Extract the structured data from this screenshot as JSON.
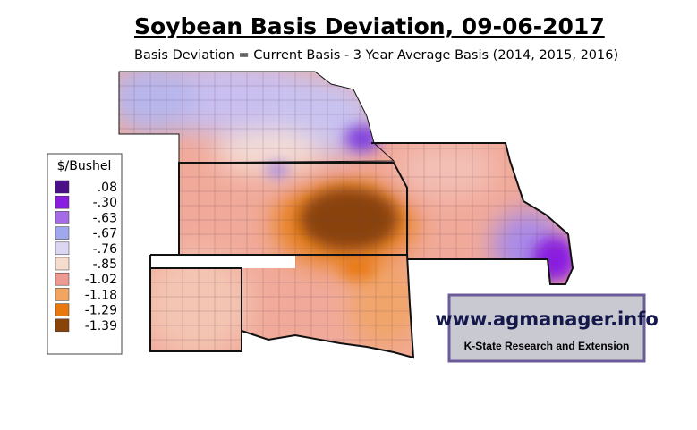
{
  "header": {
    "title": "Soybean Basis Deviation, 09-06-2017",
    "subtitle": "Basis Deviation = Current Basis - 3 Year Average Basis (2014, 2015, 2016)"
  },
  "legend": {
    "title": "$/Bushel",
    "items": [
      {
        "label": ".08",
        "color": "#4b0f8a"
      },
      {
        "label": "-.30",
        "color": "#8a1de0"
      },
      {
        "label": "-.63",
        "color": "#a46ae8"
      },
      {
        "label": "-.67",
        "color": "#9fa8ec"
      },
      {
        "label": "-.76",
        "color": "#ddd6f3"
      },
      {
        "label": "-.85",
        "color": "#f6dccc"
      },
      {
        "label": "-1.02",
        "color": "#ef9a90"
      },
      {
        "label": "-1.18",
        "color": "#f3a45e"
      },
      {
        "label": "-1.29",
        "color": "#e8780f"
      },
      {
        "label": "-1.39",
        "color": "#8a4309"
      }
    ]
  },
  "logo": {
    "url": "www.agmanager.info",
    "org": "K-State Research and Extension"
  }
}
